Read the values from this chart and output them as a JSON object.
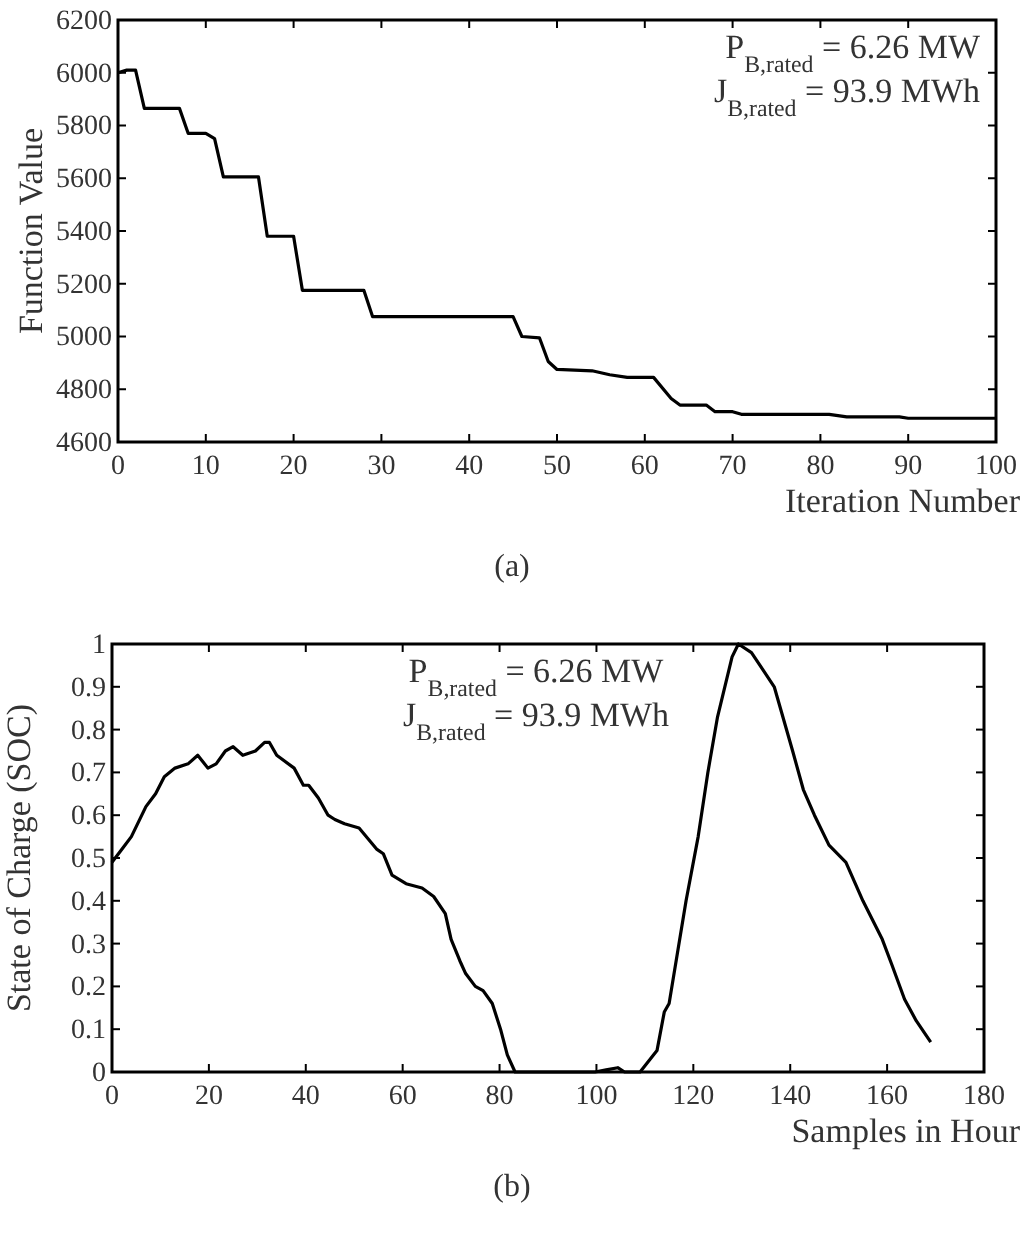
{
  "chart_data": [
    {
      "type": "line",
      "xlabel": "Iteration Number",
      "ylabel": "Function Value",
      "xlim": [
        0,
        100
      ],
      "ylim": [
        4600,
        6200
      ],
      "xticks": [
        0,
        10,
        20,
        30,
        40,
        50,
        60,
        70,
        80,
        90,
        100
      ],
      "yticks": [
        4600,
        4800,
        5000,
        5200,
        5400,
        5600,
        5800,
        6000,
        6200
      ],
      "annotations": [
        "P$_{B,rated}$ = 6.26 MW",
        "J$_{B,rated}$ = 93.9 MWh",
        "(a)"
      ],
      "series": [
        {
          "color": "#000000",
          "x": [
            0,
            1,
            2,
            3,
            7,
            8,
            10,
            11,
            12,
            16,
            17,
            20,
            21,
            28,
            29,
            45,
            46,
            48,
            49,
            50,
            54,
            56,
            58,
            61,
            63,
            64,
            67,
            68,
            70,
            71,
            81,
            83,
            89,
            90,
            100
          ],
          "values": [
            6000,
            6010,
            6010,
            5865,
            5865,
            5770,
            5770,
            5750,
            5605,
            5605,
            5380,
            5380,
            5175,
            5175,
            5075,
            5075,
            5000,
            4995,
            4905,
            4875,
            4870,
            4855,
            4845,
            4845,
            4765,
            4740,
            4740,
            4715,
            4715,
            4705,
            4705,
            4695,
            4695,
            4690,
            4690
          ]
        }
      ]
    },
    {
      "type": "line",
      "xlabel": "Samples in Hour",
      "ylabel": "State of Charge (SOC)",
      "xlim": [
        0,
        180
      ],
      "ylim": [
        0,
        1
      ],
      "xticks": [
        0,
        20,
        40,
        60,
        80,
        100,
        120,
        140,
        160,
        180
      ],
      "yticks": [
        0,
        0.1,
        0.2,
        0.3,
        0.4,
        0.5,
        0.6,
        0.7,
        0.8,
        0.9,
        1
      ],
      "annotations": [
        "P$_{B,rated}$ = 6.26 MW",
        "J$_{B,rated}$ = 93.9 MWh",
        "(b)"
      ],
      "series": [
        {
          "color": "#000000",
          "x": [
            0,
            2,
            4,
            7,
            9,
            10.8,
            13,
            15.7,
            17.7,
            19.8,
            21.5,
            23.4,
            25,
            27,
            29.6,
            31.5,
            32.5,
            34,
            37.6,
            39.5,
            40.6,
            42.6,
            44.6,
            46,
            48,
            51,
            54.7,
            56,
            57.8,
            60.7,
            64,
            66.4,
            68.8,
            70,
            71.8,
            73,
            75,
            76.6,
            78.5,
            80.2,
            81.6,
            83.2,
            99.7,
            102,
            104.4,
            105.8,
            109,
            112.5,
            114,
            115,
            118.5,
            121,
            123,
            125,
            128,
            129.3,
            132,
            136.7,
            140.5,
            142.7,
            145,
            148,
            151.5,
            155,
            159,
            161,
            163.6,
            166,
            169
          ],
          "values": [
            0.49,
            0.52,
            0.55,
            0.62,
            0.65,
            0.69,
            0.71,
            0.72,
            0.74,
            0.71,
            0.72,
            0.75,
            0.76,
            0.74,
            0.75,
            0.77,
            0.77,
            0.74,
            0.71,
            0.67,
            0.67,
            0.64,
            0.6,
            0.59,
            0.58,
            0.57,
            0.52,
            0.51,
            0.46,
            0.44,
            0.43,
            0.41,
            0.37,
            0.31,
            0.26,
            0.23,
            0.2,
            0.19,
            0.16,
            0.1,
            0.04,
            0,
            0,
            0.005,
            0.01,
            0,
            0,
            0.05,
            0.14,
            0.16,
            0.4,
            0.55,
            0.7,
            0.83,
            0.97,
            1,
            0.98,
            0.9,
            0.75,
            0.66,
            0.6,
            0.53,
            0.49,
            0.4,
            0.31,
            0.25,
            0.17,
            0.12,
            0.07
          ]
        }
      ]
    }
  ]
}
